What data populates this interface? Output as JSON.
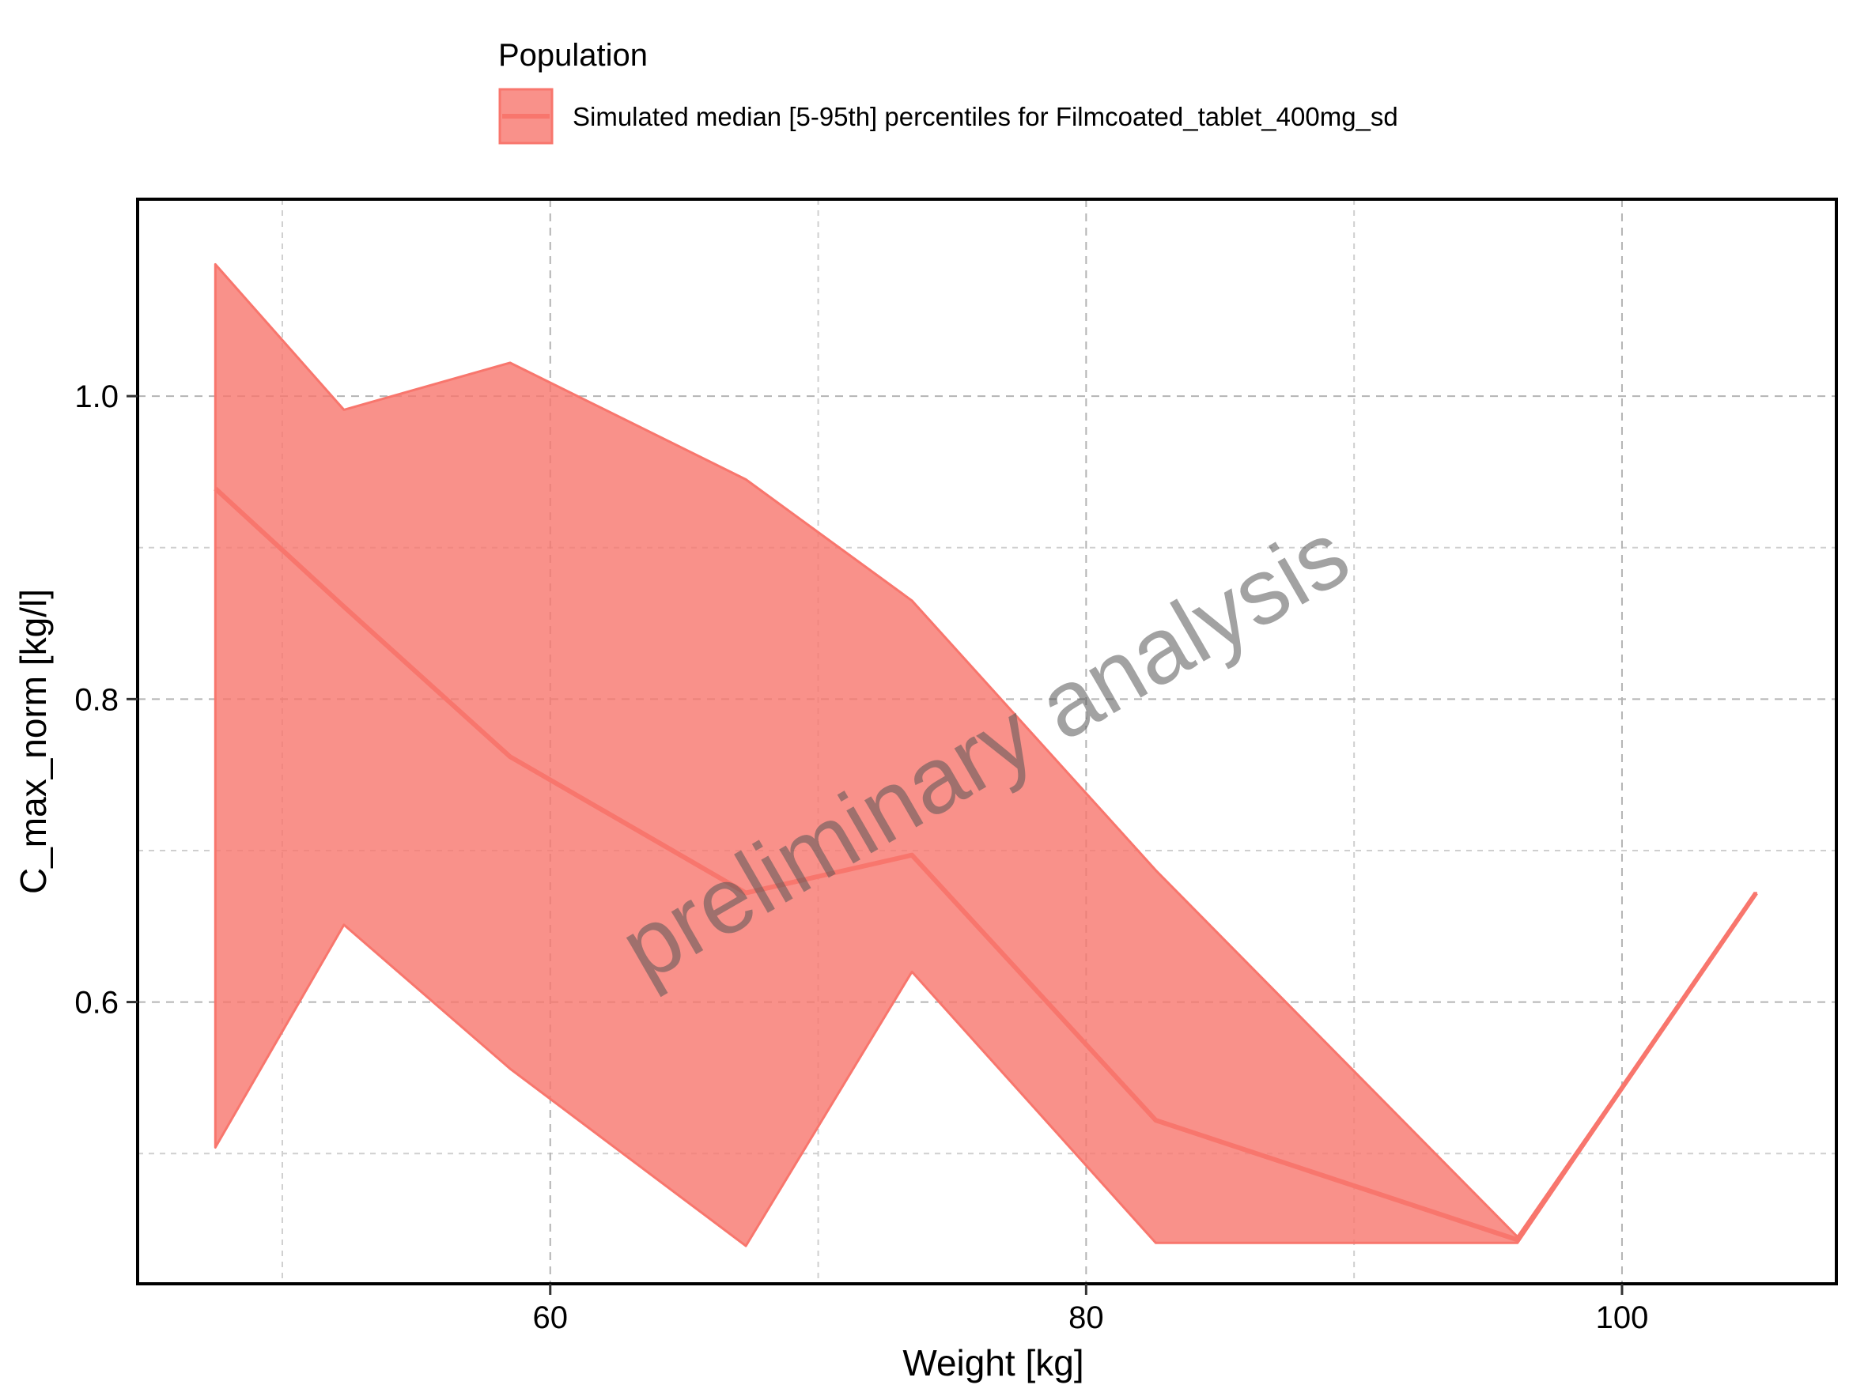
{
  "chart_data": {
    "type": "area",
    "title": "",
    "xlabel": "Weight [kg]",
    "ylabel": "C_max_norm [kg/l]",
    "xlim": [
      44.6,
      108.0
    ],
    "ylim": [
      0.414,
      1.13
    ],
    "x_ticks": [
      60,
      80,
      100
    ],
    "x_tick_labels": [
      "60",
      "80",
      "100"
    ],
    "y_ticks": [
      0.6,
      0.8,
      1.0
    ],
    "y_tick_labels": [
      "0.6",
      "0.8",
      "1.0"
    ],
    "x_minor_ticks": [
      50,
      70,
      90
    ],
    "y_minor_ticks": [
      0.5,
      0.7,
      0.9
    ],
    "grid": true,
    "legend": {
      "title": "Population",
      "position": "top",
      "entries": [
        "Simulated median [5-95th] percentiles for Filmcoated_tablet_400mg_sd"
      ]
    },
    "watermark": "preliminary analysis",
    "series": [
      {
        "name": "Simulated median [5-95th] percentiles for Filmcoated_tablet_400mg_sd",
        "x": [
          47.5,
          52.3,
          58.5,
          67.3,
          73.5,
          82.6,
          96.1,
          105.0
        ],
        "median": [
          0.939,
          0.861,
          0.762,
          0.672,
          0.697,
          0.522,
          0.443,
          0.672
        ],
        "lower": [
          0.504,
          0.651,
          0.556,
          0.439,
          0.62,
          0.441,
          0.441,
          0.672
        ],
        "upper": [
          1.087,
          0.991,
          1.022,
          0.945,
          0.865,
          0.687,
          0.445,
          0.672
        ],
        "color": "#F8766D"
      }
    ]
  }
}
